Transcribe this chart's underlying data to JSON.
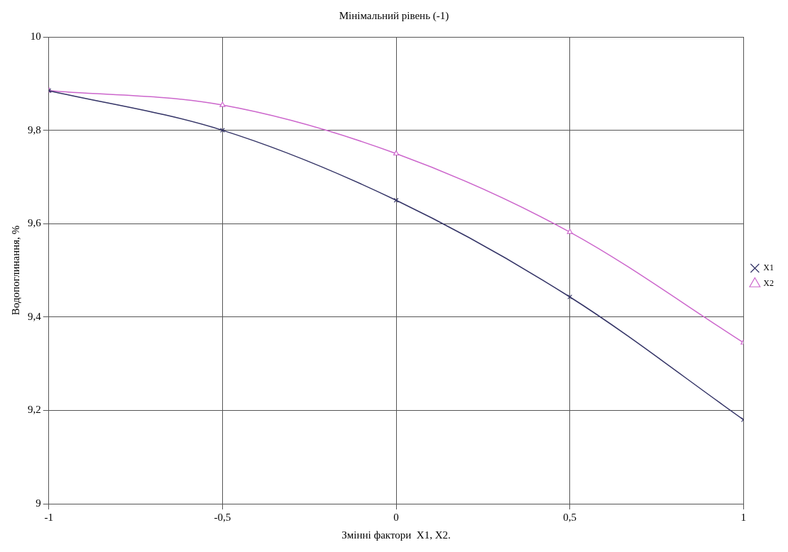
{
  "chart_data": {
    "type": "line",
    "title": "Мінімальний рівень (-1)",
    "xlabel": "Змінні фактори  X1, X2.",
    "ylabel": "Водопоглинання, %",
    "x": [
      -1,
      -0.5,
      0,
      0.5,
      1
    ],
    "series": [
      {
        "name": "X1",
        "color": "#333366",
        "marker": "cross",
        "values": [
          9.885,
          9.8,
          9.65,
          9.443,
          9.18
        ]
      },
      {
        "name": "X2",
        "color": "#cc66cc",
        "marker": "triangle",
        "values": [
          9.885,
          9.854,
          9.75,
          9.582,
          9.345
        ]
      }
    ],
    "xlim": [
      -1,
      1
    ],
    "xticks": [
      -1,
      {
        "value": -0.5,
        "label": "-0,5"
      },
      0,
      {
        "value": 0.5,
        "label": "0,5"
      },
      1
    ],
    "ylim": [
      9,
      10
    ],
    "yticks": [
      9,
      {
        "value": 9.2,
        "label": "9,2"
      },
      {
        "value": 9.4,
        "label": "9,4"
      },
      {
        "value": 9.6,
        "label": "9,6"
      },
      {
        "value": 9.8,
        "label": "9,8"
      },
      10
    ],
    "grid": true,
    "legend": "right",
    "line_style": "solid"
  }
}
